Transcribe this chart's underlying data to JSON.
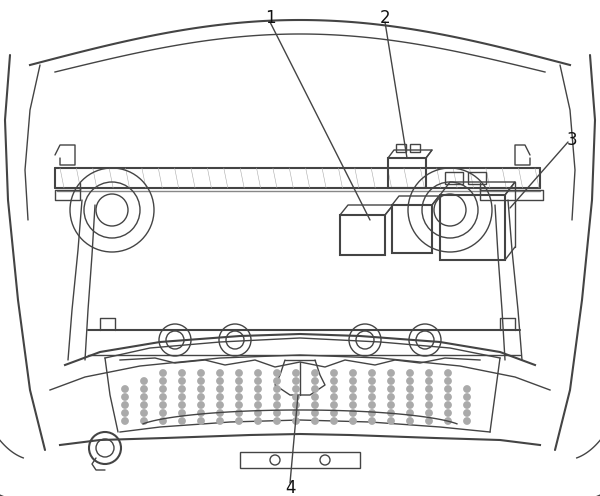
{
  "bg_color": "#ffffff",
  "line_color": "#444444",
  "label_color": "#111111",
  "labels": [
    "1",
    "2",
    "3",
    "4"
  ],
  "label_fontsize": 12,
  "figsize": [
    6.0,
    4.96
  ],
  "dpi": 100
}
